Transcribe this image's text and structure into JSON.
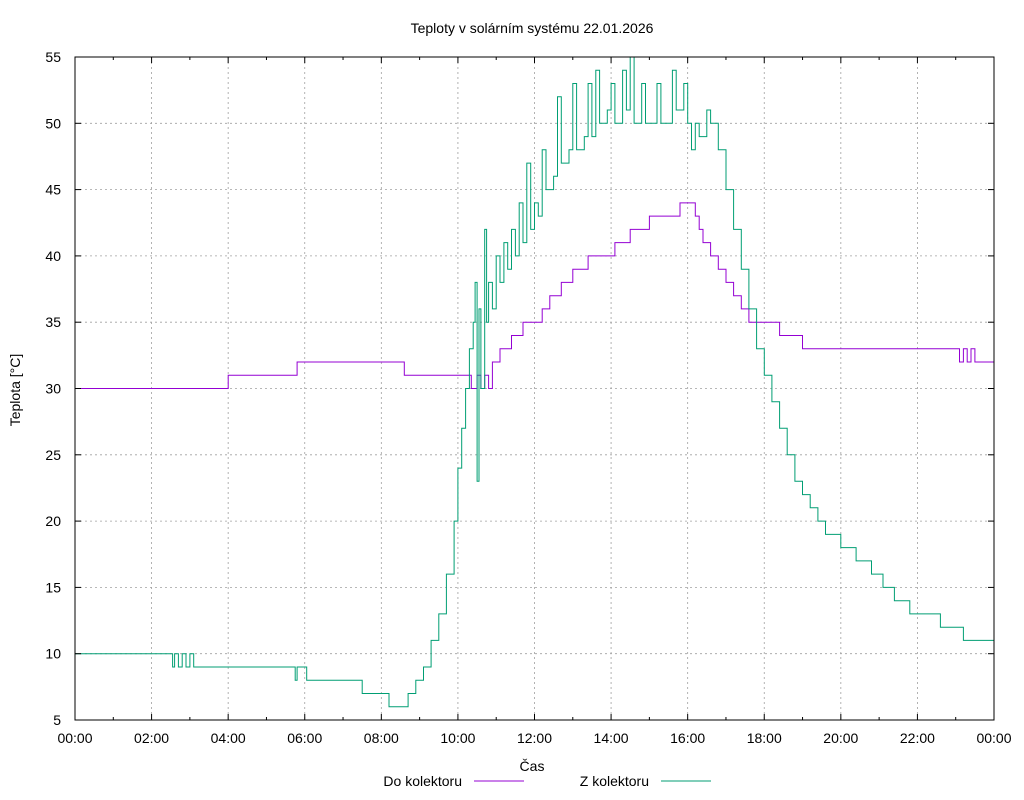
{
  "chart_data": {
    "type": "line",
    "title": "Teploty v solárním systému 22.01.2026",
    "xlabel": "Čas",
    "ylabel": "Teplota [°C]",
    "xlim": [
      0,
      24
    ],
    "ylim": [
      5,
      55
    ],
    "grid": true,
    "x_ticks": [
      {
        "v": 0,
        "label": "00:00"
      },
      {
        "v": 2,
        "label": "02:00"
      },
      {
        "v": 4,
        "label": "04:00"
      },
      {
        "v": 6,
        "label": "06:00"
      },
      {
        "v": 8,
        "label": "08:00"
      },
      {
        "v": 10,
        "label": "10:00"
      },
      {
        "v": 12,
        "label": "12:00"
      },
      {
        "v": 14,
        "label": "14:00"
      },
      {
        "v": 16,
        "label": "16:00"
      },
      {
        "v": 18,
        "label": "18:00"
      },
      {
        "v": 20,
        "label": "20:00"
      },
      {
        "v": 22,
        "label": "22:00"
      },
      {
        "v": 24,
        "label": "00:00"
      }
    ],
    "y_ticks": [
      {
        "v": 5,
        "label": "5"
      },
      {
        "v": 10,
        "label": "10"
      },
      {
        "v": 15,
        "label": "15"
      },
      {
        "v": 20,
        "label": "20"
      },
      {
        "v": 25,
        "label": "25"
      },
      {
        "v": 30,
        "label": "30"
      },
      {
        "v": 35,
        "label": "35"
      },
      {
        "v": 40,
        "label": "40"
      },
      {
        "v": 45,
        "label": "45"
      },
      {
        "v": 50,
        "label": "50"
      },
      {
        "v": 55,
        "label": "55"
      }
    ],
    "legend_position": "bottom-center",
    "series": [
      {
        "name": "Do kolektoru",
        "color": "#9400d3",
        "points": [
          [
            0,
            30
          ],
          [
            4,
            30
          ],
          [
            4,
            31
          ],
          [
            5.8,
            31
          ],
          [
            5.8,
            32
          ],
          [
            8.6,
            32
          ],
          [
            8.6,
            31
          ],
          [
            10.3,
            31
          ],
          [
            10.35,
            30
          ],
          [
            10.5,
            31
          ],
          [
            10.6,
            30
          ],
          [
            10.7,
            31
          ],
          [
            10.8,
            30
          ],
          [
            10.9,
            32
          ],
          [
            11,
            32
          ],
          [
            11.1,
            33
          ],
          [
            11.3,
            33
          ],
          [
            11.4,
            34
          ],
          [
            11.6,
            34
          ],
          [
            11.7,
            35
          ],
          [
            12,
            35
          ],
          [
            12.2,
            36
          ],
          [
            12.3,
            36
          ],
          [
            12.4,
            37
          ],
          [
            12.6,
            37
          ],
          [
            12.7,
            38
          ],
          [
            12.9,
            38
          ],
          [
            13,
            39
          ],
          [
            13.3,
            39
          ],
          [
            13.4,
            40
          ],
          [
            14,
            40
          ],
          [
            14.1,
            41
          ],
          [
            14.3,
            41
          ],
          [
            14.5,
            42
          ],
          [
            14.9,
            42
          ],
          [
            15,
            43
          ],
          [
            15.5,
            43
          ],
          [
            15.8,
            44
          ],
          [
            16,
            44
          ],
          [
            16.2,
            43
          ],
          [
            16.3,
            42
          ],
          [
            16.4,
            41
          ],
          [
            16.6,
            40
          ],
          [
            16.8,
            39
          ],
          [
            17,
            38
          ],
          [
            17.2,
            37
          ],
          [
            17.4,
            36
          ],
          [
            17.6,
            35
          ],
          [
            18.2,
            35
          ],
          [
            18.4,
            34
          ],
          [
            19,
            34
          ],
          [
            19,
            33
          ],
          [
            23,
            33
          ],
          [
            23.1,
            32
          ],
          [
            23.2,
            33
          ],
          [
            23.3,
            32
          ],
          [
            23.4,
            33
          ],
          [
            23.5,
            32
          ],
          [
            24,
            32
          ]
        ]
      },
      {
        "name": "Z kolektoru",
        "color": "#009e73",
        "points": [
          [
            0,
            10
          ],
          [
            2.5,
            10
          ],
          [
            2.55,
            9
          ],
          [
            2.6,
            10
          ],
          [
            2.7,
            9
          ],
          [
            2.8,
            10
          ],
          [
            2.9,
            9
          ],
          [
            3.0,
            10
          ],
          [
            3.1,
            9
          ],
          [
            5.7,
            9
          ],
          [
            5.75,
            8
          ],
          [
            5.8,
            9
          ],
          [
            6.0,
            9
          ],
          [
            6.05,
            8
          ],
          [
            7.5,
            8
          ],
          [
            7.5,
            7
          ],
          [
            8.2,
            7
          ],
          [
            8.2,
            6
          ],
          [
            8.6,
            6
          ],
          [
            8.7,
            7
          ],
          [
            8.9,
            8
          ],
          [
            9.1,
            9
          ],
          [
            9.3,
            11
          ],
          [
            9.5,
            13
          ],
          [
            9.7,
            16
          ],
          [
            9.9,
            20
          ],
          [
            10.0,
            24
          ],
          [
            10.1,
            27
          ],
          [
            10.2,
            30
          ],
          [
            10.3,
            33
          ],
          [
            10.4,
            35
          ],
          [
            10.45,
            38
          ],
          [
            10.5,
            23
          ],
          [
            10.55,
            36
          ],
          [
            10.6,
            30
          ],
          [
            10.7,
            42
          ],
          [
            10.75,
            35
          ],
          [
            10.8,
            38
          ],
          [
            10.9,
            36
          ],
          [
            11,
            40
          ],
          [
            11.1,
            38
          ],
          [
            11.2,
            41
          ],
          [
            11.3,
            39
          ],
          [
            11.4,
            42
          ],
          [
            11.5,
            40
          ],
          [
            11.6,
            44
          ],
          [
            11.7,
            41
          ],
          [
            11.8,
            47
          ],
          [
            11.9,
            42
          ],
          [
            12,
            44
          ],
          [
            12.1,
            43
          ],
          [
            12.2,
            48
          ],
          [
            12.3,
            45
          ],
          [
            12.5,
            46
          ],
          [
            12.6,
            52
          ],
          [
            12.7,
            47
          ],
          [
            12.9,
            48
          ],
          [
            13,
            53
          ],
          [
            13.1,
            48
          ],
          [
            13.3,
            49
          ],
          [
            13.4,
            53
          ],
          [
            13.5,
            49
          ],
          [
            13.6,
            54
          ],
          [
            13.7,
            50
          ],
          [
            13.9,
            51
          ],
          [
            14,
            53
          ],
          [
            14.1,
            50
          ],
          [
            14.3,
            54
          ],
          [
            14.4,
            51
          ],
          [
            14.5,
            55
          ],
          [
            14.6,
            50
          ],
          [
            14.8,
            53
          ],
          [
            14.9,
            50
          ],
          [
            15.2,
            53
          ],
          [
            15.3,
            50
          ],
          [
            15.6,
            54
          ],
          [
            15.7,
            51
          ],
          [
            15.9,
            53
          ],
          [
            16,
            50
          ],
          [
            16.1,
            48
          ],
          [
            16.2,
            50
          ],
          [
            16.3,
            49
          ],
          [
            16.5,
            51
          ],
          [
            16.6,
            50
          ],
          [
            16.8,
            48
          ],
          [
            17,
            45
          ],
          [
            17.2,
            42
          ],
          [
            17.4,
            39
          ],
          [
            17.6,
            36
          ],
          [
            17.8,
            33
          ],
          [
            18,
            31
          ],
          [
            18.2,
            29
          ],
          [
            18.4,
            27
          ],
          [
            18.6,
            25
          ],
          [
            18.8,
            23
          ],
          [
            19,
            22
          ],
          [
            19.2,
            21
          ],
          [
            19.4,
            20
          ],
          [
            19.6,
            19
          ],
          [
            20,
            18
          ],
          [
            20.4,
            17
          ],
          [
            20.8,
            16
          ],
          [
            21.1,
            15
          ],
          [
            21.4,
            14
          ],
          [
            21.8,
            13
          ],
          [
            22.6,
            13
          ],
          [
            22.6,
            12
          ],
          [
            23.2,
            12
          ],
          [
            23.2,
            11
          ],
          [
            23.9,
            11
          ],
          [
            24,
            10
          ]
        ]
      }
    ]
  }
}
